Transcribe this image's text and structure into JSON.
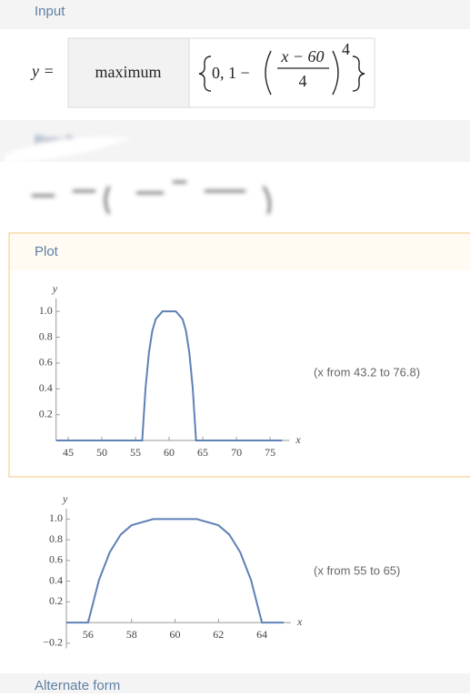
{
  "input": {
    "title": "Input",
    "lhs": "y =",
    "function": "maximum",
    "set_start": "0, 1 −",
    "numerator": "x − 60",
    "denominator": "4",
    "exponent": "4"
  },
  "result": {
    "title": "Result"
  },
  "plot": {
    "title": "Plot"
  },
  "chart_data": [
    {
      "type": "line",
      "x_label": "x",
      "y_label": "y",
      "annotation": "(x from 43.2 to 76.8)",
      "x": [
        43.2,
        56,
        56.5,
        57,
        57.5,
        58,
        59,
        60,
        61,
        62,
        62.5,
        63,
        63.5,
        64,
        76.8
      ],
      "series": [
        {
          "color": "#5e81b5",
          "values": [
            0,
            0,
            0.41,
            0.68,
            0.85,
            0.94,
            1.0,
            1,
            1.0,
            0.94,
            0.85,
            0.68,
            0.41,
            0,
            0
          ]
        }
      ],
      "xlim": [
        43.2,
        76.8
      ],
      "ylim": [
        0,
        1.1
      ],
      "xticks": [
        45,
        50,
        55,
        60,
        65,
        70,
        75
      ],
      "yticks": [
        0.2,
        0.4,
        0.6,
        0.8,
        {
          "value": 1,
          "label": "1.0"
        }
      ]
    },
    {
      "type": "line",
      "x_label": "x",
      "y_label": "y",
      "annotation": "(x from 55 to 65)",
      "x": [
        55,
        56,
        56.5,
        57,
        57.5,
        58,
        59,
        60,
        61,
        62,
        62.5,
        63,
        63.5,
        64,
        65
      ],
      "series": [
        {
          "color": "#5e81b5",
          "values": [
            0,
            0,
            0.41,
            0.68,
            0.85,
            0.94,
            1.0,
            1,
            1.0,
            0.94,
            0.85,
            0.68,
            0.41,
            0,
            0
          ]
        }
      ],
      "xlim": [
        55,
        65
      ],
      "ylim": [
        -0.25,
        1.1
      ],
      "xticks": [
        56,
        58,
        60,
        62,
        64
      ],
      "yticks": [
        {
          "value": -0.2,
          "label": "−0.2"
        },
        0.2,
        0.4,
        0.6,
        0.8,
        {
          "value": 1,
          "label": "1.0"
        }
      ]
    }
  ],
  "alternate_form": {
    "title": "Alternate form"
  }
}
